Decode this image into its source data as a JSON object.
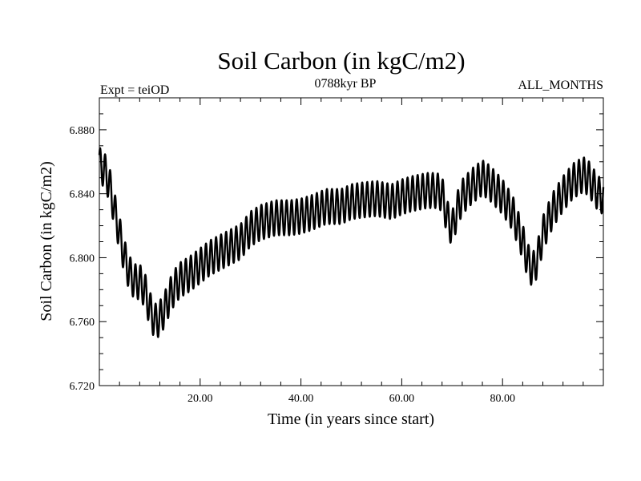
{
  "chart_data": {
    "type": "line",
    "title": "Soil Carbon (in kgC/m2)",
    "subtitle_left": "Expt = teiOD",
    "subtitle_center": "0788kyr BP",
    "subtitle_right": "ALL_MONTHS",
    "xlabel": "Time (in years since start)",
    "ylabel": "Soil Carbon (in kgC/m2)",
    "xlim": [
      0,
      100
    ],
    "ylim": [
      6.72,
      6.9
    ],
    "x_ticks": [
      20,
      40,
      60,
      80
    ],
    "x_tick_labels": [
      "20.00",
      "40.00",
      "60.00",
      "80.00"
    ],
    "y_ticks": [
      6.72,
      6.76,
      6.8,
      6.84,
      6.88
    ],
    "y_tick_labels": [
      "6.720",
      "6.760",
      "6.800",
      "6.840",
      "6.880"
    ],
    "grid": false,
    "series": [
      {
        "name": "Soil Carbon",
        "color": "#000000",
        "seasonal_cycle_years": 1,
        "seasonal_amplitude": 0.011,
        "annual_mean": {
          "x": [
            0,
            1,
            2,
            3,
            4,
            5,
            6,
            7,
            8,
            9,
            10,
            11,
            12,
            13,
            14,
            15,
            16,
            18,
            20,
            22,
            25,
            28,
            30,
            32,
            35,
            38,
            40,
            42,
            45,
            48,
            50,
            52,
            55,
            58,
            60,
            62,
            65,
            67,
            68,
            69,
            70,
            71,
            72,
            74,
            76,
            77,
            78,
            80,
            82,
            84,
            85,
            86,
            87,
            88,
            90,
            92,
            94,
            96,
            97,
            98,
            99,
            100
          ],
          "y": [
            6.858,
            6.855,
            6.846,
            6.83,
            6.815,
            6.8,
            6.79,
            6.785,
            6.785,
            6.78,
            6.768,
            6.76,
            6.762,
            6.768,
            6.776,
            6.782,
            6.786,
            6.79,
            6.795,
            6.8,
            6.805,
            6.81,
            6.818,
            6.822,
            6.825,
            6.825,
            6.826,
            6.828,
            6.832,
            6.832,
            6.835,
            6.836,
            6.837,
            6.835,
            6.838,
            6.84,
            6.842,
            6.842,
            6.84,
            6.825,
            6.818,
            6.83,
            6.838,
            6.845,
            6.85,
            6.848,
            6.845,
            6.838,
            6.828,
            6.81,
            6.798,
            6.792,
            6.8,
            6.815,
            6.83,
            6.84,
            6.848,
            6.852,
            6.85,
            6.845,
            6.84,
            6.838
          ]
        }
      }
    ]
  }
}
